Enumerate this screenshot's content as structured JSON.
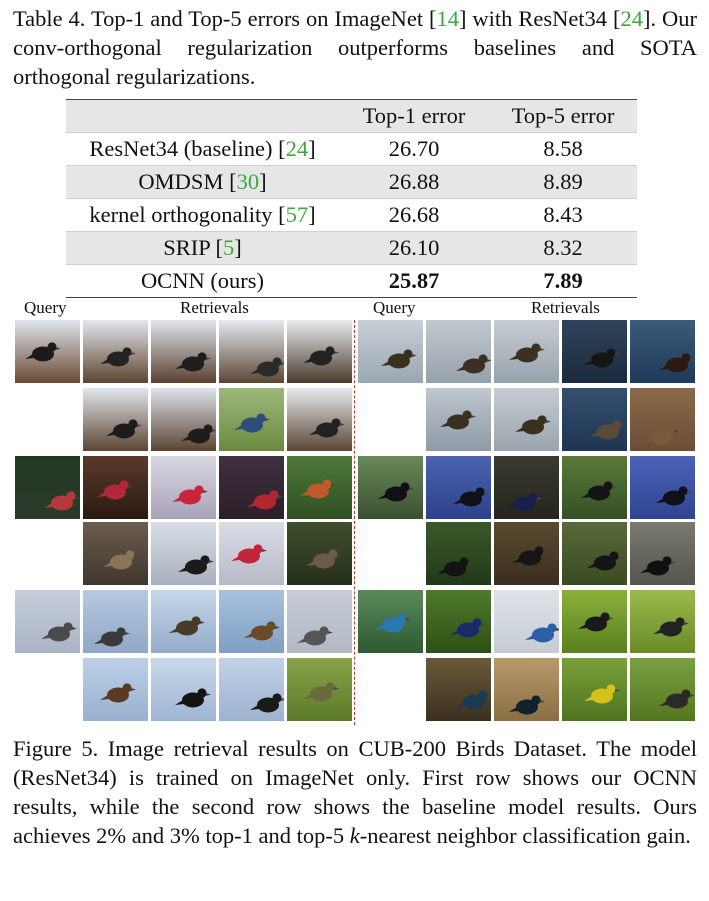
{
  "table_caption": {
    "parts": [
      "Table 4. Top-1 and Top-5 errors on ImageNet [",
      "14",
      "] with ResNet34 [",
      "24",
      "]. Our conv-orthogonal regularization outperforms baselines and SOTA orthogonal regularizations."
    ]
  },
  "table": {
    "headers": [
      "",
      "Top-1 error",
      "Top-5 error"
    ],
    "rows": [
      {
        "method": "ResNet34 (baseline) [",
        "ref": "24",
        "close": "]",
        "top1": "26.70",
        "top5": "8.58"
      },
      {
        "method": "OMDSM [",
        "ref": "30",
        "close": "]",
        "top1": "26.88",
        "top5": "8.89"
      },
      {
        "method": "kernel orthogonality [",
        "ref": "57",
        "close": "]",
        "top1": "26.68",
        "top5": "8.43"
      },
      {
        "method": "SRIP [",
        "ref": "5",
        "close": "]",
        "top1": "26.10",
        "top5": "8.32"
      },
      {
        "method": "OCNN (ours)",
        "ref": "",
        "close": "",
        "top1": "25.87",
        "top5": "7.89"
      }
    ]
  },
  "figure": {
    "left_query_label": "Query",
    "left_retrievals_label": "Retrievals",
    "right_query_label": "Query",
    "right_retrievals_label": "Retrievals"
  },
  "figure_caption": {
    "text_a": "Figure 5. Image retrieval results on CUB-200 Birds Dataset. The model (ResNet34) is trained on ImageNet only. First row shows our OCNN results, while the second row shows the baseline model results. Ours achieves 2% and 3% top-1 and top-5 ",
    "k": "k",
    "text_b": "-nearest neighbor classification gain."
  },
  "colors": {
    "citation": "#3aa83a",
    "divider": "#c0392b",
    "table_shade": "#e6e6e6"
  }
}
